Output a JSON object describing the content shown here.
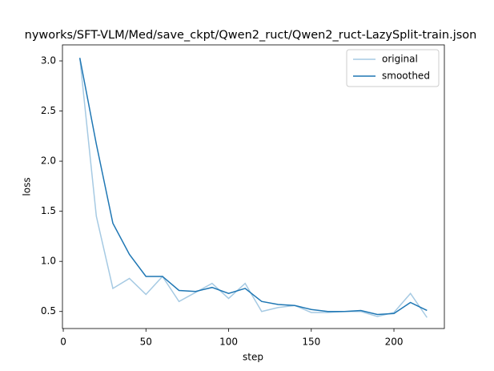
{
  "chart_data": {
    "type": "line",
    "title": "nyworks/SFT-VLM/Med/save_ckpt/Qwen2_ruct/Qwen2_ruct-LazySplit-train.json",
    "xlabel": "step",
    "ylabel": "loss",
    "x": [
      10,
      20,
      30,
      40,
      50,
      60,
      70,
      80,
      90,
      100,
      110,
      120,
      130,
      140,
      150,
      160,
      170,
      180,
      190,
      200,
      210,
      220
    ],
    "series": [
      {
        "name": "original",
        "color": "#a6cae3",
        "values": [
          3.03,
          1.45,
          0.73,
          0.83,
          0.67,
          0.85,
          0.6,
          0.69,
          0.78,
          0.63,
          0.78,
          0.5,
          0.54,
          0.56,
          0.49,
          0.49,
          0.5,
          0.5,
          0.45,
          0.49,
          0.68,
          0.44
        ]
      },
      {
        "name": "smoothed",
        "color": "#1f77b4",
        "values": [
          3.03,
          2.17,
          1.38,
          1.07,
          0.85,
          0.85,
          0.71,
          0.7,
          0.74,
          0.68,
          0.73,
          0.6,
          0.57,
          0.56,
          0.52,
          0.5,
          0.5,
          0.51,
          0.47,
          0.48,
          0.59,
          0.51
        ]
      }
    ],
    "xlim": [
      -0.5,
      230.5
    ],
    "ylim": [
      0.33,
      3.16
    ],
    "xticks": [
      0,
      50,
      100,
      150,
      200
    ],
    "yticks": [
      0.5,
      {
        "value": 1,
        "label": "1.0"
      },
      1.5,
      {
        "value": 2,
        "label": "2.0"
      },
      2.5,
      {
        "value": 3,
        "label": "3.0"
      }
    ],
    "grid": false,
    "legend": "upper right"
  }
}
